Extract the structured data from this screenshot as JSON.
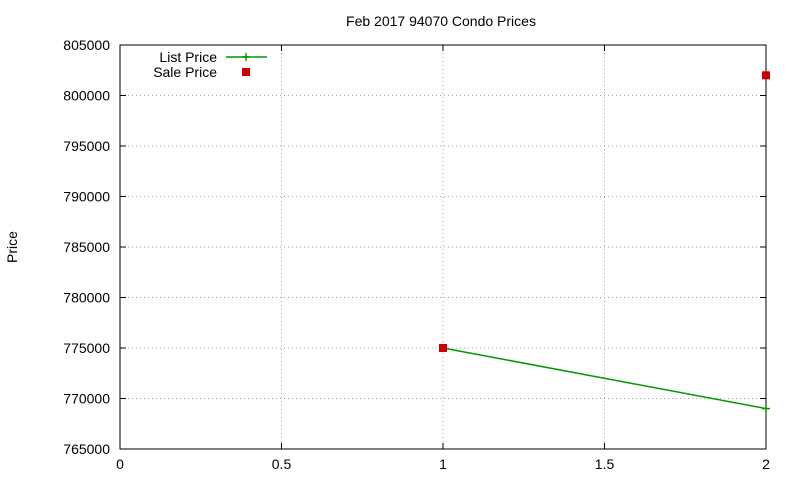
{
  "chart_data": {
    "type": "line",
    "title": "Feb 2017 94070 Condo Prices",
    "xlabel": "",
    "ylabel": "Price",
    "xlim": [
      0,
      2
    ],
    "ylim": [
      765000,
      805000
    ],
    "xticks": [
      0,
      0.5,
      1,
      1.5,
      2
    ],
    "yticks": [
      765000,
      770000,
      775000,
      780000,
      785000,
      790000,
      795000,
      800000,
      805000
    ],
    "grid": true,
    "legend_position": "top-left",
    "series": [
      {
        "name": "List Price",
        "style": "line-with-plus-markers",
        "color": "#009900",
        "points": [
          [
            1,
            775000
          ],
          [
            2,
            769000
          ]
        ]
      },
      {
        "name": "Sale Price",
        "style": "square-markers",
        "color": "#cc0000",
        "points": [
          [
            1,
            775000
          ],
          [
            2,
            802000
          ]
        ]
      }
    ]
  }
}
